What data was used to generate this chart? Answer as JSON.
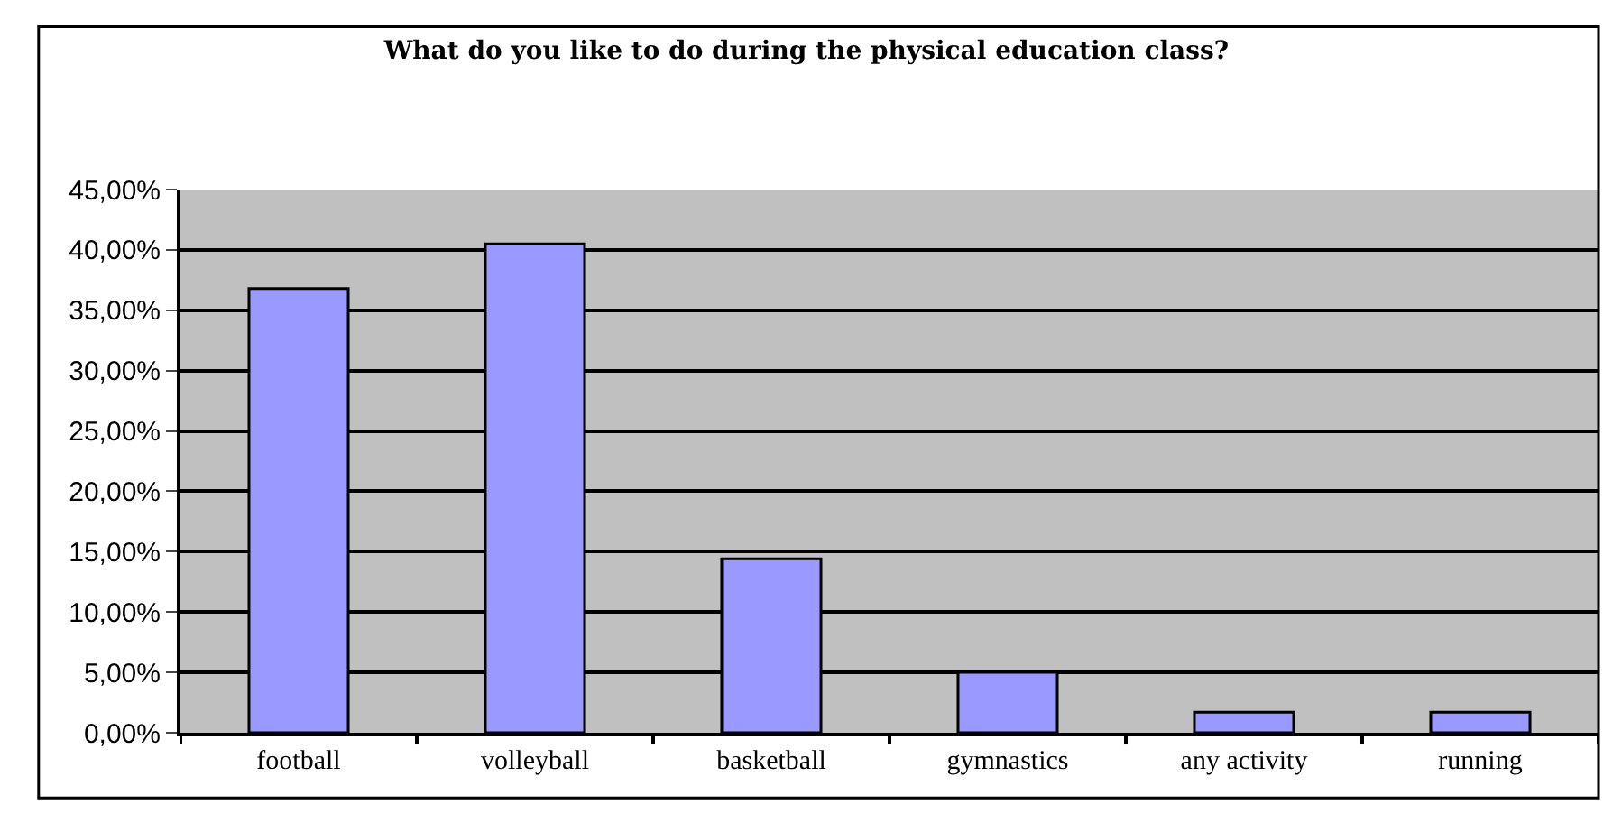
{
  "chart_data": {
    "type": "bar",
    "title": "What do you like to do during the physical education class?",
    "categories": [
      "football",
      "volleyball",
      "basketball",
      "gymnastics",
      "any activity",
      "running"
    ],
    "values": [
      36.8,
      40.5,
      14.4,
      5.0,
      1.7,
      1.7
    ],
    "color": "#9999ff",
    "ylim": [
      0,
      45
    ],
    "yticks": [
      {
        "value": 0,
        "label": "0,00%"
      },
      {
        "value": 5,
        "label": "5,00%"
      },
      {
        "value": 10,
        "label": "10,00%"
      },
      {
        "value": 15,
        "label": "15,00%"
      },
      {
        "value": 20,
        "label": "20,00%"
      },
      {
        "value": 25,
        "label": "25,00%"
      },
      {
        "value": 30,
        "label": "30,00%"
      },
      {
        "value": 35,
        "label": "35,00%"
      },
      {
        "value": 40,
        "label": "40,00%"
      },
      {
        "value": 45,
        "label": "45,00%"
      }
    ],
    "grid": "y",
    "legend": false
  }
}
